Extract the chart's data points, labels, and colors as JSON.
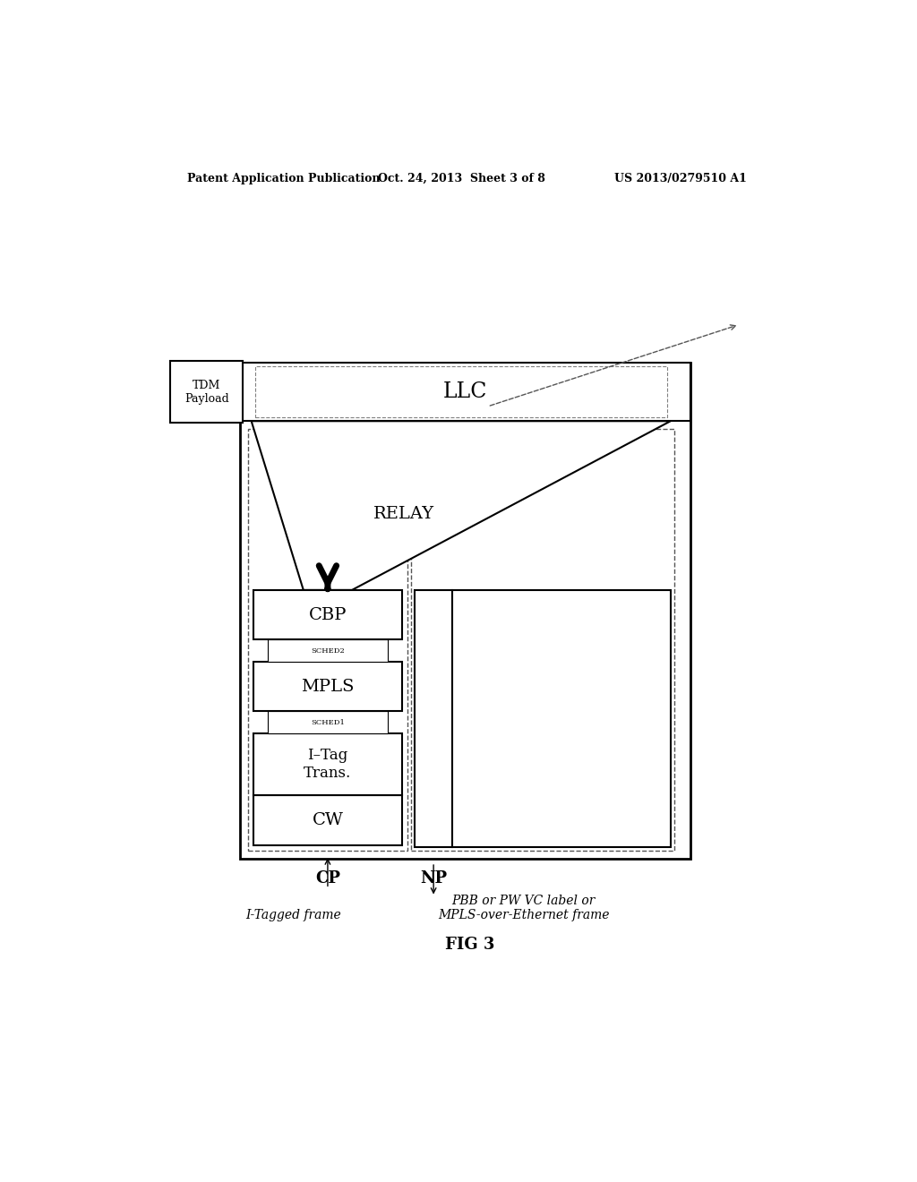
{
  "bg_color": "#ffffff",
  "header_left": "Patent Application Publication",
  "header_mid": "Oct. 24, 2013  Sheet 3 of 8",
  "header_right": "US 2013/0279510 A1",
  "fig_label": "FIG 3",
  "cp_label": "CP",
  "np_label": "NP",
  "cp_sublabel": "I-Tagged frame",
  "np_sublabel": "PBB or PW VC label or\nMPLS-over-Ethernet frame",
  "tdm_label": "TDM\nPayload",
  "llc_label": "LLC",
  "relay_label": "RELAY",
  "cbp_label": "CBP",
  "sched2_label": "SCHED2",
  "mpls_label": "MPLS",
  "sched1_label": "SCHED1",
  "itag_label": "I–Tag\nTrans.",
  "cw_label": "CW"
}
